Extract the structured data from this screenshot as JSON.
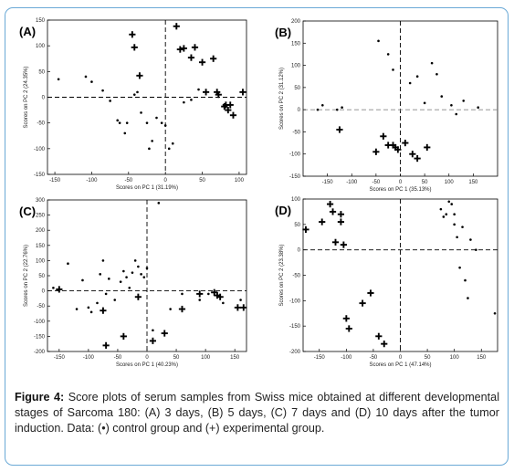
{
  "figure": {
    "caption_label": "Figure 4:",
    "caption_text": " Score plots of serum samples from Swiss mice obtained at different developmental stages of Sarcoma 180: (A) 3 days, (B) 5 days, (C) 7 days and (D) 10 days after the tumor induction. Data: (•) control group and (+) experimental group."
  },
  "chart_data": [
    {
      "type": "scatter",
      "panel_label": "(A)",
      "xlabel": "Scores on PC 1 (31.19%)",
      "ylabel": "Scores on PC 2 (24.35%)",
      "xlim": [
        -160,
        110
      ],
      "ylim": [
        -150,
        150
      ],
      "xticks": [
        -150,
        -100,
        -50,
        0,
        50,
        100
      ],
      "yticks": [
        -150,
        -100,
        -50,
        0,
        50,
        100,
        150
      ],
      "series": [
        {
          "name": "control",
          "marker": "dot",
          "x": [
            -145,
            -108,
            -100,
            -85,
            -75,
            -65,
            -62,
            -55,
            -52,
            -42,
            -38,
            -33,
            -25,
            -22,
            -18,
            -12,
            -5,
            0,
            5,
            10,
            25,
            35,
            45
          ],
          "y": [
            35,
            40,
            30,
            13,
            -7,
            -45,
            -50,
            -70,
            -50,
            5,
            10,
            -30,
            -50,
            -100,
            -85,
            -40,
            -50,
            -55,
            -100,
            -90,
            -10,
            -5,
            15
          ]
        },
        {
          "name": "experimental",
          "marker": "plus",
          "x": [
            -45,
            -42,
            -35,
            15,
            20,
            25,
            35,
            40,
            50,
            55,
            65,
            70,
            72,
            80,
            82,
            85,
            88,
            92,
            105
          ],
          "y": [
            122,
            97,
            42,
            138,
            93,
            95,
            77,
            97,
            68,
            10,
            75,
            10,
            5,
            -18,
            -15,
            -25,
            -15,
            -35,
            10
          ]
        }
      ]
    },
    {
      "type": "scatter",
      "panel_label": "(B)",
      "xlabel": "Scores on PC 1 (35.13%)",
      "ylabel": "Scores on PC 2 (31.12%)",
      "xlim": [
        -200,
        200
      ],
      "ylim": [
        -150,
        200
      ],
      "xticks": [
        -150,
        -100,
        -50,
        0,
        50,
        100,
        150
      ],
      "yticks": [
        -150,
        -100,
        -50,
        0,
        50,
        100,
        150,
        200
      ],
      "series": [
        {
          "name": "control",
          "marker": "dot",
          "x": [
            -170,
            -160,
            -130,
            -120,
            -45,
            -25,
            -15,
            20,
            35,
            50,
            65,
            75,
            85,
            105,
            115,
            130,
            160
          ],
          "y": [
            0,
            10,
            0,
            5,
            155,
            125,
            90,
            60,
            75,
            15,
            105,
            80,
            30,
            10,
            -10,
            20,
            5
          ]
        },
        {
          "name": "experimental",
          "marker": "plus",
          "x": [
            -125,
            -50,
            -35,
            -25,
            -15,
            -10,
            -5,
            10,
            25,
            35,
            55
          ],
          "y": [
            -45,
            -95,
            -60,
            -80,
            -80,
            -85,
            -90,
            -75,
            -100,
            -110,
            -85
          ]
        }
      ]
    },
    {
      "type": "scatter",
      "panel_label": "(C)",
      "xlabel": "Scores on PC 1 (40.23%)",
      "ylabel": "Scores on PC 2 (22.76%)",
      "xlim": [
        -170,
        170
      ],
      "ylim": [
        -200,
        300
      ],
      "xticks": [
        -150,
        -100,
        -50,
        0,
        50,
        100,
        150
      ],
      "yticks": [
        -200,
        -150,
        -100,
        -50,
        0,
        50,
        100,
        150,
        200,
        250,
        300
      ],
      "series": [
        {
          "name": "control",
          "marker": "dot",
          "x": [
            -160,
            -135,
            -120,
            -110,
            -100,
            -95,
            -85,
            -80,
            -75,
            -70,
            -65,
            -55,
            -45,
            -40,
            -35,
            -30,
            -25,
            -20,
            -15,
            -10,
            -5,
            0,
            10,
            20,
            40,
            60,
            90,
            105,
            130,
            160
          ],
          "y": [
            10,
            90,
            -60,
            35,
            -55,
            -70,
            -40,
            55,
            100,
            -10,
            40,
            -30,
            30,
            65,
            45,
            10,
            60,
            100,
            80,
            55,
            45,
            75,
            -130,
            290,
            -60,
            -10,
            -30,
            -10,
            -40,
            -30
          ]
        },
        {
          "name": "experimental",
          "marker": "plus",
          "x": [
            -150,
            -75,
            -70,
            -40,
            -15,
            10,
            30,
            60,
            90,
            115,
            120,
            125,
            155,
            165
          ],
          "y": [
            5,
            -65,
            -180,
            -150,
            -20,
            -165,
            -140,
            -60,
            -10,
            -5,
            -15,
            -20,
            -55,
            -55
          ]
        }
      ]
    },
    {
      "type": "scatter",
      "panel_label": "(D)",
      "xlabel": "Scores on PC 1 (47.14%)",
      "ylabel": "Scores on PC 2 (23.38%)",
      "xlim": [
        -180,
        180
      ],
      "ylim": [
        -200,
        100
      ],
      "xticks": [
        -150,
        -100,
        -50,
        0,
        50,
        100,
        150
      ],
      "yticks": [
        -200,
        -150,
        -100,
        -50,
        0,
        50,
        100
      ],
      "series": [
        {
          "name": "control",
          "marker": "dot",
          "x": [
            75,
            80,
            85,
            90,
            95,
            100,
            100,
            105,
            110,
            115,
            120,
            125,
            130,
            140,
            175
          ],
          "y": [
            80,
            65,
            70,
            95,
            90,
            70,
            50,
            25,
            -35,
            45,
            -60,
            -95,
            20,
            0,
            -125
          ]
        },
        {
          "name": "experimental",
          "marker": "plus",
          "x": [
            -175,
            -145,
            -130,
            -125,
            -120,
            -110,
            -110,
            -105,
            -100,
            -95,
            -70,
            -55,
            -40,
            -30
          ],
          "y": [
            40,
            55,
            90,
            75,
            15,
            70,
            55,
            10,
            -135,
            -155,
            -105,
            -85,
            -170,
            -185
          ]
        }
      ]
    }
  ]
}
